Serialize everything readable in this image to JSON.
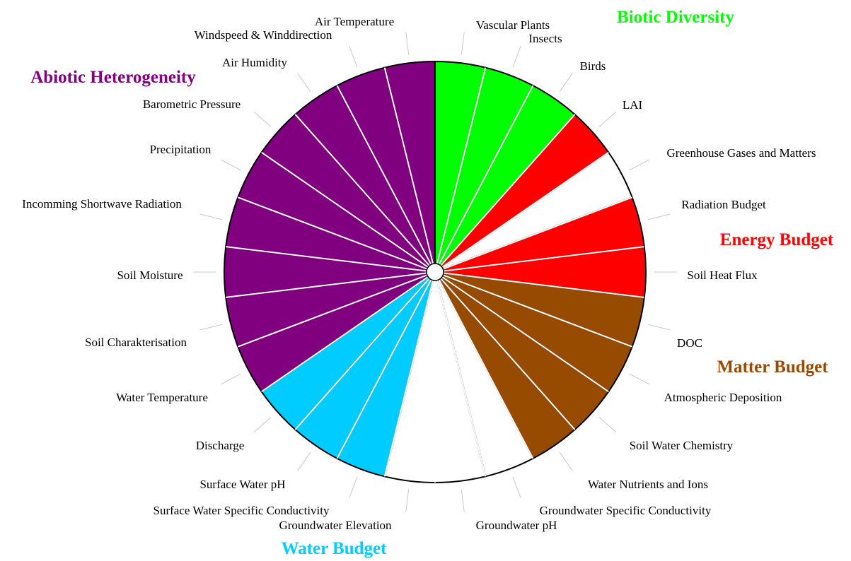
{
  "chart_data": {
    "type": "pie",
    "title": "",
    "slices": [
      {
        "label": "Vascular Plants",
        "value": 1,
        "group": "Biotic Diversity"
      },
      {
        "label": "Insects",
        "value": 1,
        "group": "Biotic Diversity"
      },
      {
        "label": "Birds",
        "value": 1,
        "group": "Biotic Diversity"
      },
      {
        "label": "LAI",
        "value": 1,
        "group": "Energy Budget"
      },
      {
        "label": "Greenhouse Gases and Matters",
        "value": 1,
        "group": ""
      },
      {
        "label": "Radiation Budget",
        "value": 1,
        "group": "Energy Budget"
      },
      {
        "label": "Soil Heat Flux",
        "value": 1,
        "group": "Energy Budget"
      },
      {
        "label": "DOC",
        "value": 1,
        "group": "Matter Budget"
      },
      {
        "label": "Atmospheric Deposition",
        "value": 1,
        "group": "Matter Budget"
      },
      {
        "label": "Soil Water Chemistry",
        "value": 1,
        "group": "Matter Budget"
      },
      {
        "label": "Water Nutrients and Ions",
        "value": 1,
        "group": "Matter Budget"
      },
      {
        "label": "Groundwater Specific Conductivity",
        "value": 1,
        "group": ""
      },
      {
        "label": "Groundwater pH",
        "value": 1,
        "group": ""
      },
      {
        "label": "Groundwater Elevation",
        "value": 1,
        "group": ""
      },
      {
        "label": "Surface Water Specific Conductivity",
        "value": 1,
        "group": "Water Budget"
      },
      {
        "label": "Surface Water pH",
        "value": 1,
        "group": "Water Budget"
      },
      {
        "label": "Discharge",
        "value": 1,
        "group": "Water Budget"
      },
      {
        "label": "Water Temperature",
        "value": 1,
        "group": "Abiotic Heterogeneity"
      },
      {
        "label": "Soil Charakterisation",
        "value": 1,
        "group": "Abiotic Heterogeneity"
      },
      {
        "label": "Soil Moisture",
        "value": 1,
        "group": "Abiotic Heterogeneity"
      },
      {
        "label": "Incomming Shortwave Radiation",
        "value": 1,
        "group": "Abiotic Heterogeneity"
      },
      {
        "label": "Precipitation",
        "value": 1,
        "group": "Abiotic Heterogeneity"
      },
      {
        "label": "Barometric Pressure",
        "value": 1,
        "group": "Abiotic Heterogeneity"
      },
      {
        "label": "Air Humidity",
        "value": 1,
        "group": "Abiotic Heterogeneity"
      },
      {
        "label": "Windspeed & Winddirection",
        "value": 1,
        "group": "Abiotic Heterogeneity"
      },
      {
        "label": "Air Temperature",
        "value": 1,
        "group": "Abiotic Heterogeneity"
      }
    ],
    "groups": [
      {
        "name": "Biotic Diversity",
        "color": "#00ff00"
      },
      {
        "name": "Energy Budget",
        "color": "#ff0000"
      },
      {
        "name": "Matter Budget",
        "color": "#964b00"
      },
      {
        "name": "Water Budget",
        "color": "#00ccff"
      },
      {
        "name": "Abiotic Heterogeneity",
        "color": "#800080"
      }
    ],
    "unassigned_color": "#ffffff"
  }
}
